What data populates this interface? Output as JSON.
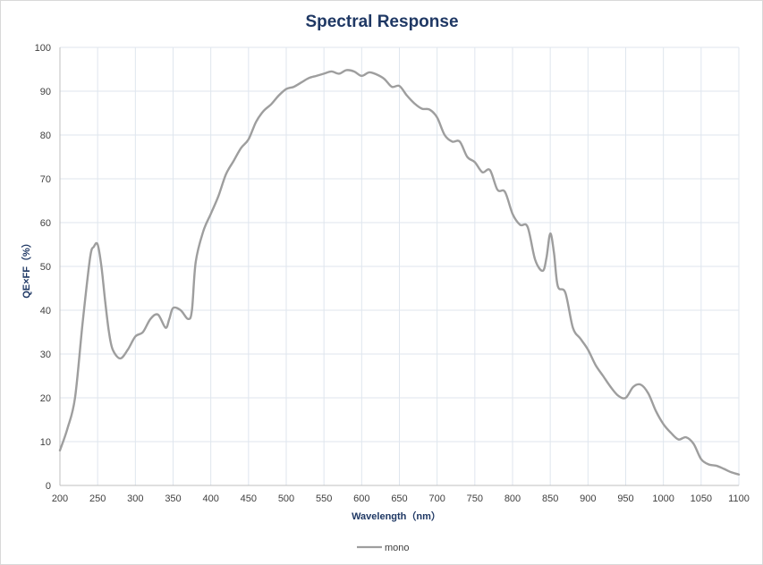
{
  "chart_data": {
    "type": "line",
    "title": "Spectral Response",
    "xlabel": "Wavelength（nm）",
    "ylabel": "QE×FF（%）",
    "xlim": [
      200,
      1100
    ],
    "ylim": [
      0,
      100
    ],
    "xticks": [
      200,
      250,
      300,
      350,
      400,
      450,
      500,
      550,
      600,
      650,
      700,
      750,
      800,
      850,
      900,
      950,
      1000,
      1050,
      1100
    ],
    "yticks": [
      0,
      10,
      20,
      30,
      40,
      50,
      60,
      70,
      80,
      90,
      100
    ],
    "grid": true,
    "legend_position": "bottom-center",
    "series": [
      {
        "name": "mono",
        "color": "#9e9e9e",
        "points": [
          [
            200,
            8
          ],
          [
            210,
            13
          ],
          [
            220,
            20
          ],
          [
            230,
            37
          ],
          [
            240,
            52
          ],
          [
            245,
            54.5
          ],
          [
            250,
            55
          ],
          [
            255,
            50
          ],
          [
            260,
            42
          ],
          [
            265,
            35
          ],
          [
            270,
            31
          ],
          [
            280,
            29
          ],
          [
            290,
            31
          ],
          [
            300,
            34
          ],
          [
            310,
            35
          ],
          [
            320,
            38
          ],
          [
            330,
            39
          ],
          [
            340,
            36
          ],
          [
            345,
            38
          ],
          [
            350,
            40.5
          ],
          [
            360,
            40
          ],
          [
            370,
            38
          ],
          [
            375,
            40
          ],
          [
            380,
            51
          ],
          [
            390,
            58
          ],
          [
            400,
            62
          ],
          [
            410,
            66
          ],
          [
            420,
            71
          ],
          [
            430,
            74
          ],
          [
            440,
            77
          ],
          [
            450,
            79
          ],
          [
            460,
            83
          ],
          [
            470,
            85.5
          ],
          [
            480,
            87
          ],
          [
            490,
            89
          ],
          [
            500,
            90.5
          ],
          [
            510,
            91
          ],
          [
            520,
            92
          ],
          [
            530,
            93
          ],
          [
            540,
            93.5
          ],
          [
            550,
            94
          ],
          [
            560,
            94.5
          ],
          [
            570,
            94
          ],
          [
            580,
            94.8
          ],
          [
            590,
            94.5
          ],
          [
            600,
            93.5
          ],
          [
            610,
            94.3
          ],
          [
            620,
            93.8
          ],
          [
            630,
            92.8
          ],
          [
            640,
            91
          ],
          [
            650,
            91.2
          ],
          [
            660,
            89
          ],
          [
            670,
            87.2
          ],
          [
            680,
            86
          ],
          [
            690,
            85.8
          ],
          [
            700,
            84
          ],
          [
            710,
            80
          ],
          [
            720,
            78.5
          ],
          [
            730,
            78.5
          ],
          [
            740,
            75
          ],
          [
            750,
            73.8
          ],
          [
            760,
            71.5
          ],
          [
            770,
            72
          ],
          [
            780,
            67.5
          ],
          [
            790,
            67
          ],
          [
            800,
            62
          ],
          [
            810,
            59.5
          ],
          [
            820,
            59
          ],
          [
            830,
            51.5
          ],
          [
            840,
            49
          ],
          [
            845,
            52
          ],
          [
            850,
            57.5
          ],
          [
            855,
            53
          ],
          [
            860,
            45.5
          ],
          [
            870,
            44
          ],
          [
            880,
            36
          ],
          [
            890,
            33.5
          ],
          [
            900,
            31
          ],
          [
            910,
            27.5
          ],
          [
            920,
            25
          ],
          [
            930,
            22.5
          ],
          [
            940,
            20.5
          ],
          [
            950,
            20
          ],
          [
            960,
            22.5
          ],
          [
            970,
            23
          ],
          [
            980,
            21
          ],
          [
            990,
            17
          ],
          [
            1000,
            14
          ],
          [
            1010,
            12
          ],
          [
            1020,
            10.5
          ],
          [
            1030,
            11
          ],
          [
            1040,
            9.5
          ],
          [
            1050,
            6
          ],
          [
            1060,
            4.8
          ],
          [
            1070,
            4.5
          ],
          [
            1080,
            3.8
          ],
          [
            1090,
            3
          ],
          [
            1100,
            2.5
          ]
        ]
      }
    ]
  }
}
